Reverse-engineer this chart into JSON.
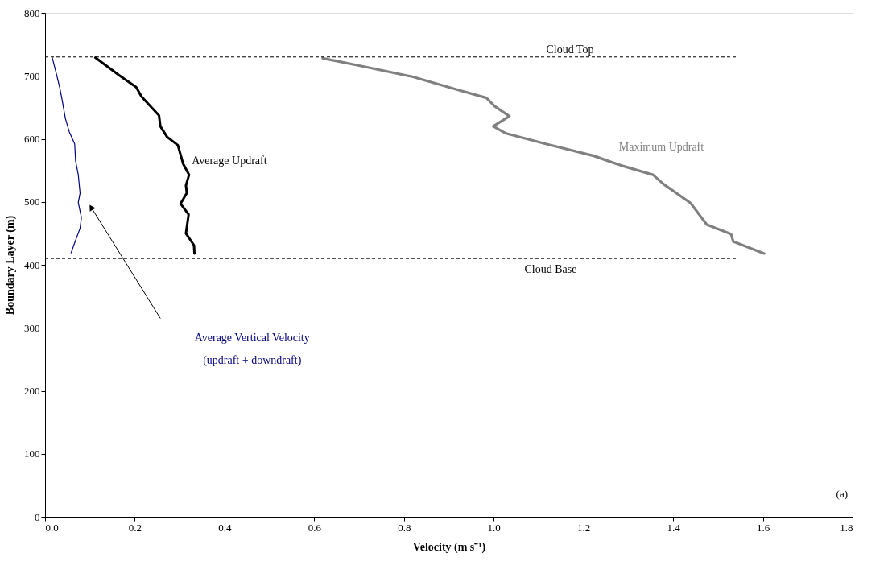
{
  "chart_data": {
    "type": "line",
    "xlabel": "Velocity (m s⁻¹)",
    "ylabel": "Boundary Layer (m)",
    "xlim": [
      0,
      1.8
    ],
    "xticks": [
      {
        "value": 0,
        "label": "0.0"
      },
      {
        "value": 0.2,
        "label": "0.2"
      },
      {
        "value": 0.4,
        "label": "0.4"
      },
      {
        "value": 0.6,
        "label": "0.6"
      },
      {
        "value": 0.8,
        "label": "0.8"
      },
      {
        "value": 1,
        "label": "1.0"
      },
      {
        "value": 1.2,
        "label": "1.2"
      },
      {
        "value": 1.4,
        "label": "1.4"
      },
      {
        "value": 1.6,
        "label": "1.6"
      },
      {
        "value": 1.8,
        "label": "1.8"
      }
    ],
    "ylim": [
      0,
      800
    ],
    "yticks": [
      0,
      100,
      200,
      300,
      400,
      500,
      600,
      700,
      800
    ],
    "grid": false,
    "legend": false,
    "marker": "none",
    "line_style": "solid",
    "series": [
      {
        "name": "Average Vertical Velocity\n(updraft + downdraft)",
        "color": "#000080",
        "x": [
          0.016,
          0.026,
          0.033,
          0.039,
          0.045,
          0.054,
          0.066,
          0.068,
          0.074,
          0.078,
          0.074,
          0.081,
          0.078,
          0.069,
          0.058
        ],
        "values": [
          729,
          701,
          680,
          658,
          633,
          611,
          592,
          565,
          543,
          514,
          499,
          475,
          458,
          441,
          419
        ]
      },
      {
        "name": "Average Updraft",
        "color": "#000000",
        "x": [
          0.112,
          0.165,
          0.203,
          0.215,
          0.254,
          0.257,
          0.272,
          0.296,
          0.308,
          0.321,
          0.314,
          0.316,
          0.302,
          0.32,
          0.314,
          0.332,
          0.333
        ],
        "values": [
          729,
          701,
          682,
          667,
          637,
          620,
          603,
          590,
          560,
          543,
          526,
          514,
          497,
          480,
          450,
          431,
          418
        ]
      },
      {
        "name": "Maximum Updraft",
        "color": "#808080",
        "x": [
          0.619,
          0.709,
          0.817,
          0.924,
          0.984,
          1.002,
          1.035,
          0.999,
          1.026,
          1.116,
          1.223,
          1.283,
          1.355,
          1.379,
          1.439,
          1.475,
          1.529,
          1.534,
          1.603
        ],
        "values": [
          728,
          715,
          699,
          677,
          665,
          652,
          636,
          620,
          609,
          592,
          573,
          558,
          543,
          528,
          498,
          464,
          449,
          437,
          418
        ]
      }
    ],
    "ref_lines": [
      {
        "axis": "y",
        "value": 730,
        "label": "Cloud Top",
        "color": "#000000",
        "line_style": "dashed"
      },
      {
        "axis": "y",
        "value": 410,
        "label": "Cloud Base",
        "color": "#000000",
        "line_style": "dashed"
      }
    ],
    "annotations": [
      "(a)"
    ]
  }
}
